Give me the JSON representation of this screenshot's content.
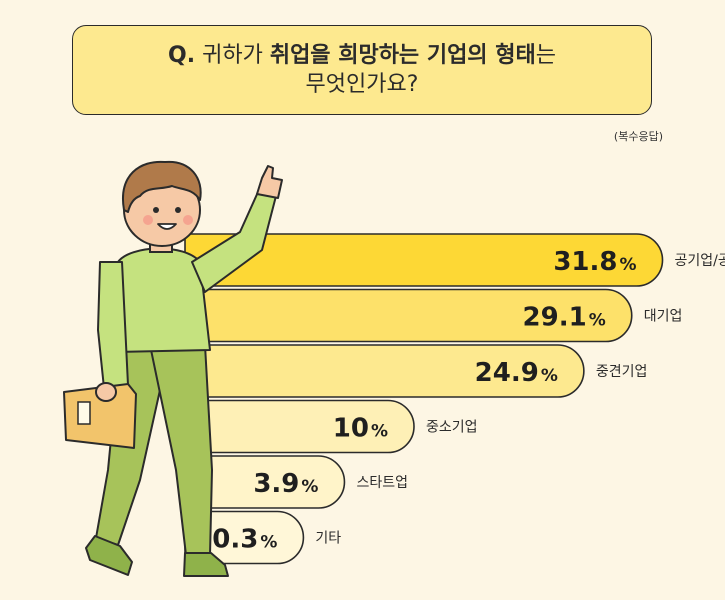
{
  "question": {
    "prefix": "Q.",
    "line1_plain1": "귀하가 ",
    "line1_bold1": "취업을 희망하는 기업의 형태",
    "line1_plain2": "는",
    "line2": "무엇인가요?"
  },
  "note": "(복수응답)",
  "colors": {
    "background": "#fdf6e4",
    "question_box": "#fde98f",
    "bar_top": "#fdd835",
    "outline": "#2b2b2b",
    "shirt": "#c5e27f",
    "pants": "#a7c35a"
  },
  "chart_data": {
    "type": "bar",
    "orientation": "horizontal",
    "categories": [
      "공기업/공공기관",
      "대기업",
      "중견기업",
      "중소기업",
      "스타트업",
      "기타"
    ],
    "values": [
      31.8,
      29.1,
      24.9,
      10,
      3.9,
      0.3
    ],
    "value_labels": [
      "31.8",
      "29.1",
      "24.9",
      "10",
      "3.9",
      "0.3"
    ],
    "unit": "%",
    "bar_colors": [
      "#fdd835",
      "#fde16a",
      "#fde98f",
      "#fef0b6",
      "#fff4c9",
      "#fff7d8"
    ],
    "title": "",
    "xlabel": "",
    "ylabel": ""
  }
}
